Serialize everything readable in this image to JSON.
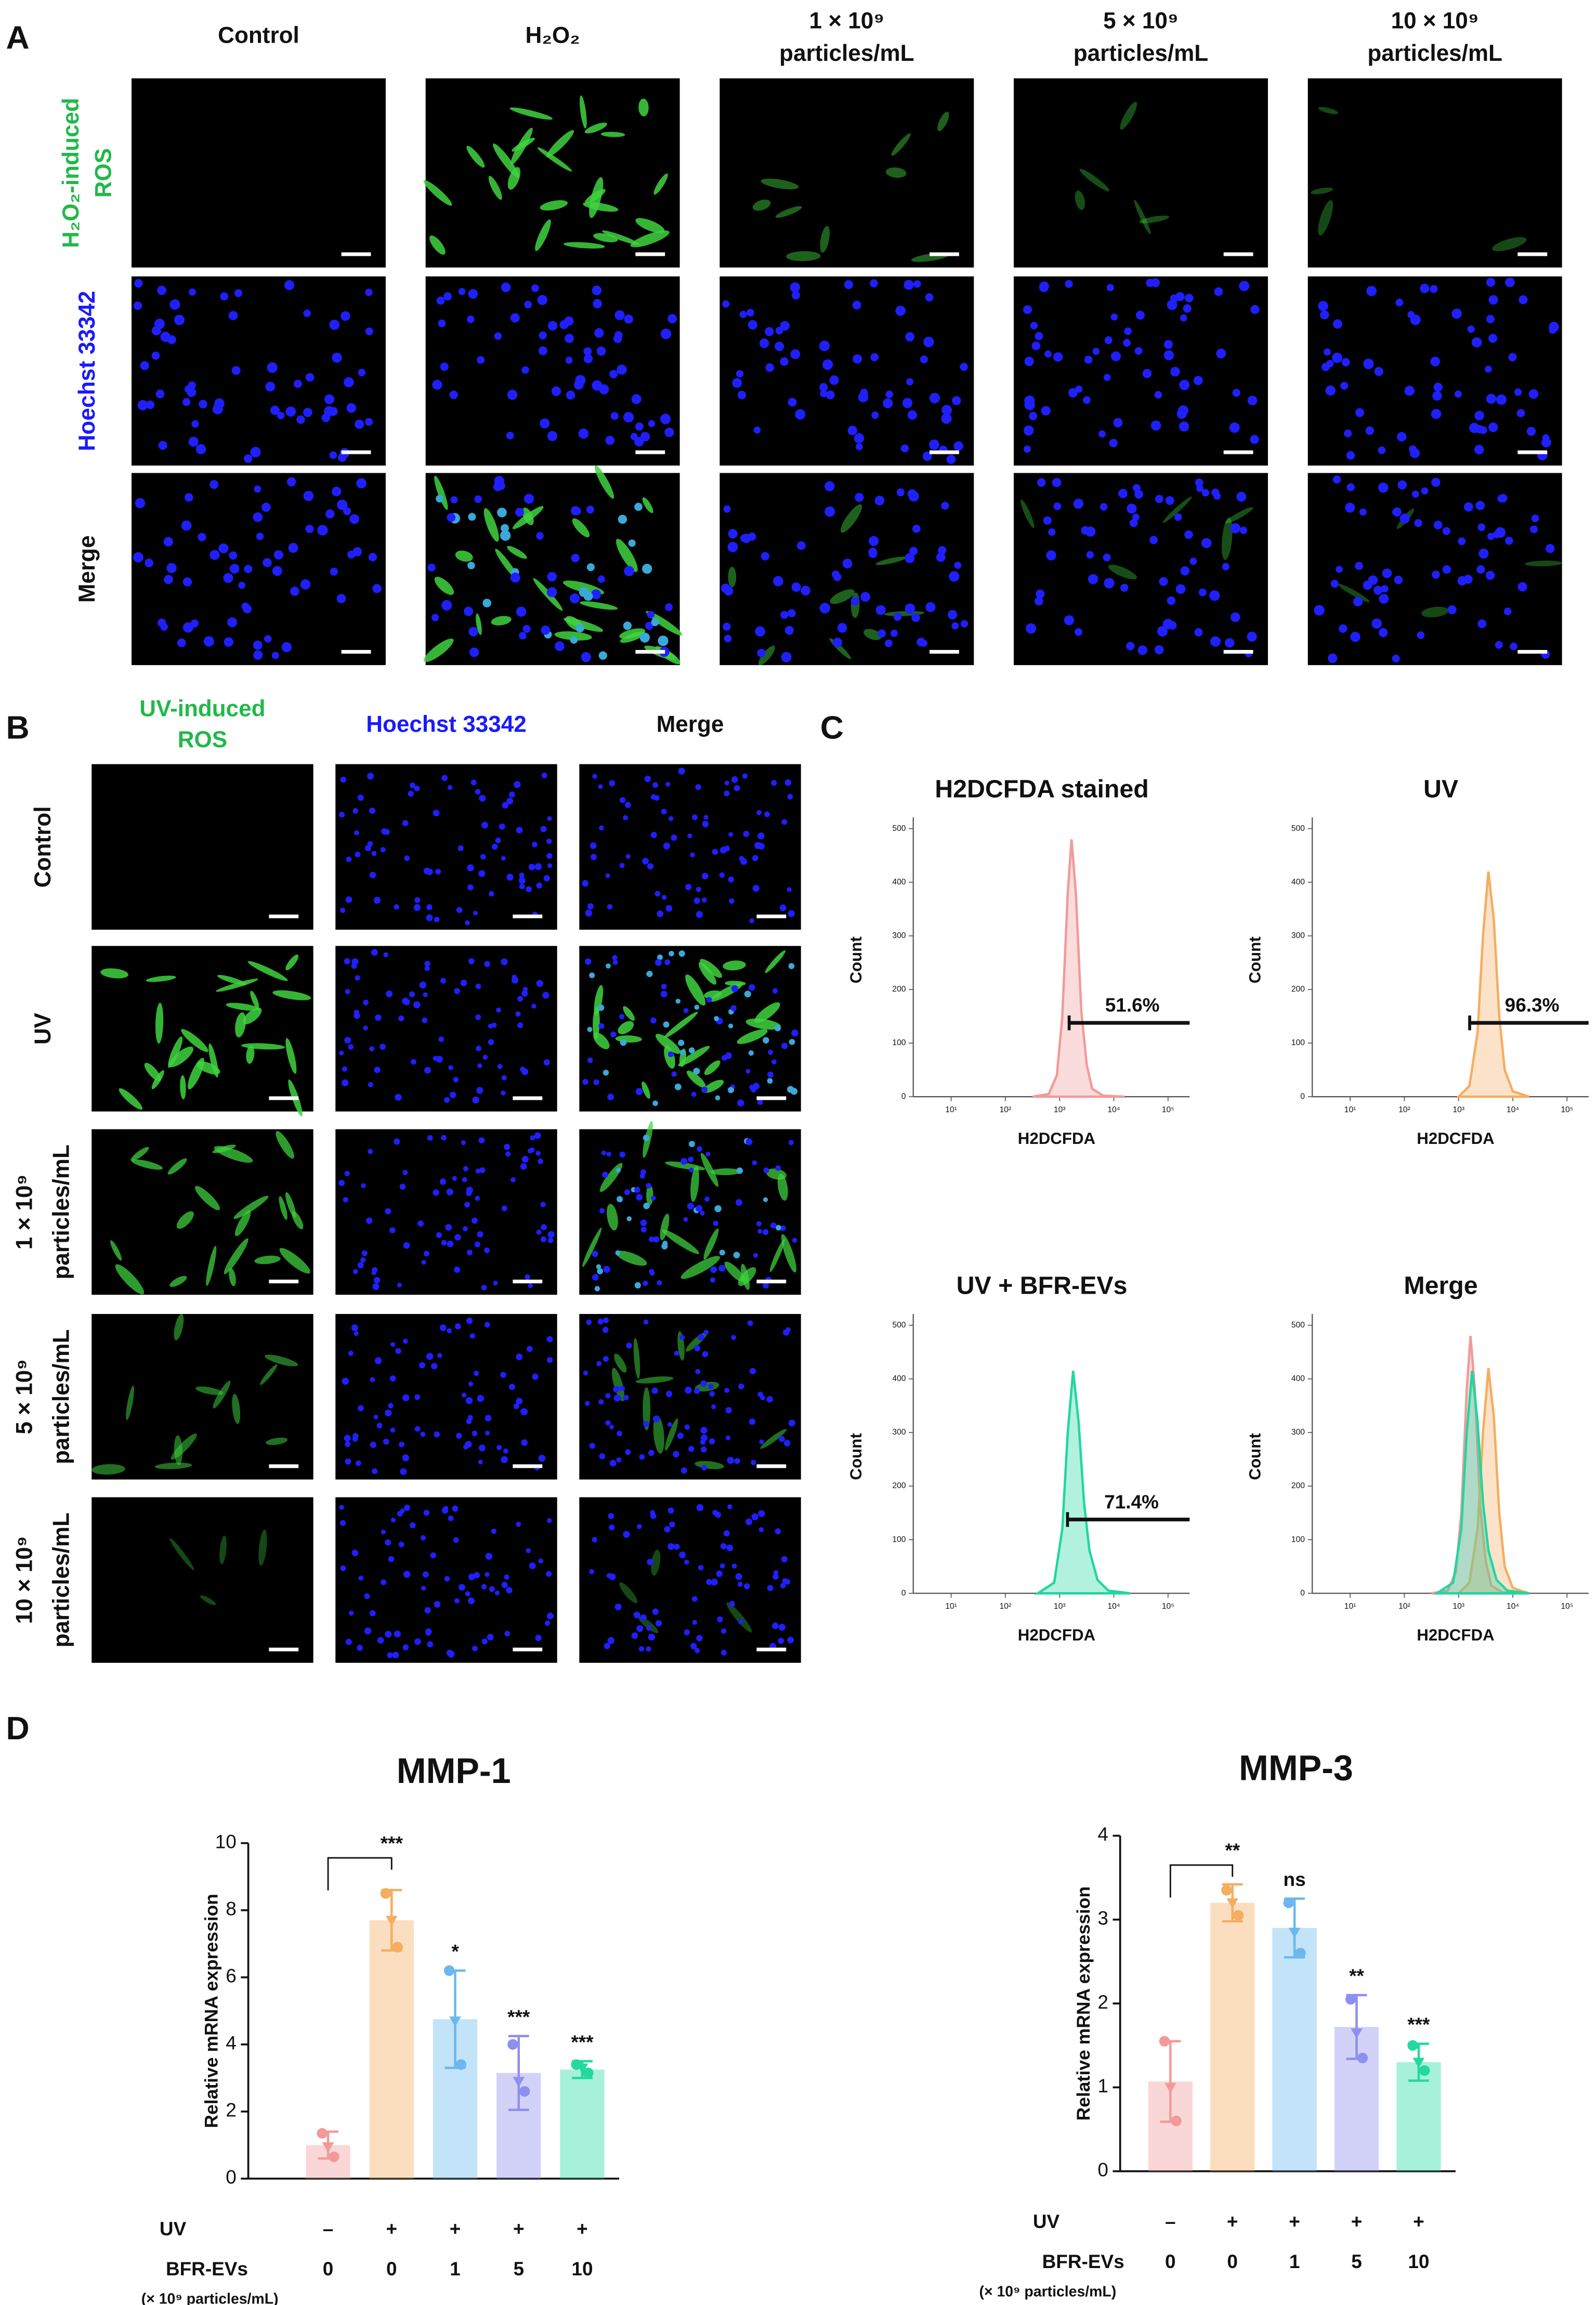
{
  "panel_labels": [
    "A",
    "B",
    "C",
    "D"
  ],
  "panel_a": {
    "columns": [
      [
        "Control"
      ],
      [
        "H₂O₂"
      ],
      [
        "1 × 10⁹",
        "particles/mL"
      ],
      [
        "5 × 10⁹",
        "particles/mL"
      ],
      [
        "10 × 10⁹",
        "particles/mL"
      ]
    ],
    "rows": [
      [
        "H₂O₂-induced",
        "ROS"
      ],
      [
        "Hoechst 33342"
      ],
      [
        "Merge"
      ]
    ]
  },
  "panel_b": {
    "columns": [
      [
        "UV-induced",
        "ROS"
      ],
      [
        "Hoechst 33342"
      ],
      [
        "Merge"
      ]
    ],
    "rows": [
      [
        "Control"
      ],
      [
        "UV"
      ],
      [
        "1 × 10⁹",
        "particles/mL"
      ],
      [
        "5 × 10⁹",
        "particles/mL"
      ],
      [
        "10 × 10⁹",
        "particles/mL"
      ]
    ]
  },
  "chart_data": [
    {
      "type": "area",
      "title": "H2DCFDA stained",
      "xlabel": "H2DCFDA",
      "ylabel": "Count",
      "xscale": "log",
      "xlim": [
        2,
        250000
      ],
      "ylim": [
        0,
        510
      ],
      "xticks": [
        {
          "value": 10,
          "label": "10¹"
        },
        {
          "value": 100,
          "label": "10²"
        },
        {
          "value": 1000,
          "label": "10³"
        },
        {
          "value": 10000,
          "label": "10⁴"
        },
        {
          "value": 100000,
          "label": "10⁵"
        }
      ],
      "yticks": [
        0,
        100,
        200,
        300,
        400,
        500
      ],
      "series": [
        {
          "color": "#f29a9a",
          "x": [
            316,
            631,
            891,
            1122,
            1413,
            1660,
            1995,
            2512,
            3162,
            3981,
            6310,
            15849
          ],
          "values": [
            0,
            5,
            40,
            150,
            380,
            480,
            380,
            160,
            60,
            15,
            2,
            0
          ]
        }
      ],
      "gate": {
        "x": 1500,
        "value": 51.6,
        "value_label": "51.6%"
      }
    },
    {
      "type": "area",
      "title": "UV",
      "xlabel": "H2DCFDA",
      "ylabel": "Count",
      "xscale": "log",
      "xlim": [
        2,
        250000
      ],
      "ylim": [
        0,
        510
      ],
      "xticks": [
        {
          "value": 10,
          "label": "10¹"
        },
        {
          "value": 100,
          "label": "10²"
        },
        {
          "value": 1000,
          "label": "10³"
        },
        {
          "value": 10000,
          "label": "10⁴"
        },
        {
          "value": 100000,
          "label": "10⁵"
        }
      ],
      "yticks": [
        0,
        100,
        200,
        300,
        400,
        500
      ],
      "series": [
        {
          "color": "#f5ad62",
          "x": [
            1000,
            1585,
            2239,
            2818,
            3548,
            4467,
            5623,
            7079,
            10000,
            19953
          ],
          "values": [
            0,
            20,
            120,
            300,
            420,
            330,
            150,
            50,
            10,
            0
          ]
        }
      ],
      "gate": {
        "x": 1600,
        "value": 96.3,
        "value_label": "96.3%"
      }
    },
    {
      "type": "area",
      "title": "UV + BFR-EVs",
      "xlabel": "H2DCFDA",
      "ylabel": "Count",
      "xscale": "log",
      "xlim": [
        2,
        250000
      ],
      "ylim": [
        0,
        510
      ],
      "xticks": [
        {
          "value": 10,
          "label": "10¹"
        },
        {
          "value": 100,
          "label": "10²"
        },
        {
          "value": 1000,
          "label": "10³"
        },
        {
          "value": 10000,
          "label": "10⁴"
        },
        {
          "value": 100000,
          "label": "10⁵"
        }
      ],
      "yticks": [
        0,
        100,
        200,
        300,
        400,
        500
      ],
      "series": [
        {
          "color": "#22d6a0",
          "x": [
            398,
            794,
            1122,
            1413,
            1778,
            2239,
            2818,
            3548,
            5012,
            7943,
            19953
          ],
          "values": [
            0,
            20,
            120,
            300,
            415,
            320,
            170,
            80,
            25,
            5,
            0
          ]
        }
      ],
      "gate": {
        "x": 1400,
        "value": 71.4,
        "value_label": "71.4%"
      }
    },
    {
      "type": "area",
      "title": "Merge",
      "xlabel": "H2DCFDA",
      "ylabel": "Count",
      "xscale": "log",
      "xlim": [
        2,
        250000
      ],
      "ylim": [
        0,
        510
      ],
      "xticks": [
        {
          "value": 10,
          "label": "10¹"
        },
        {
          "value": 100,
          "label": "10²"
        },
        {
          "value": 1000,
          "label": "10³"
        },
        {
          "value": 10000,
          "label": "10⁴"
        },
        {
          "value": 100000,
          "label": "10⁵"
        }
      ],
      "yticks": [
        0,
        100,
        200,
        300,
        400,
        500
      ],
      "series": [
        {
          "color": "#f29a9a",
          "x": [
            316,
            631,
            891,
            1122,
            1413,
            1660,
            1995,
            2512,
            3162,
            3981,
            6310,
            15849
          ],
          "values": [
            0,
            5,
            40,
            150,
            380,
            480,
            380,
            160,
            60,
            15,
            2,
            0
          ]
        },
        {
          "color": "#f5ad62",
          "x": [
            1000,
            1585,
            2239,
            2818,
            3548,
            4467,
            5623,
            7079,
            10000,
            19953
          ],
          "values": [
            0,
            20,
            120,
            300,
            420,
            330,
            150,
            50,
            10,
            0
          ]
        },
        {
          "color": "#22d6a0",
          "x": [
            398,
            794,
            1122,
            1413,
            1778,
            2239,
            2818,
            3548,
            5012,
            7943,
            19953
          ],
          "values": [
            0,
            20,
            120,
            300,
            415,
            320,
            170,
            80,
            25,
            5,
            0
          ]
        }
      ]
    },
    {
      "type": "bar",
      "title": "MMP-1",
      "ylabel": "Relative mRNA expression",
      "ylim": [
        0,
        10
      ],
      "yticks": [
        0,
        2,
        4,
        6,
        8,
        10
      ],
      "row_labels": [
        "UV",
        "BFR-EVs"
      ],
      "unit_label": "(× 10⁹ particles/mL)",
      "uv": [
        "–",
        "+",
        "+",
        "+",
        "+"
      ],
      "categories": [
        "0",
        "0",
        "1",
        "5",
        "10"
      ],
      "values": [
        1.0,
        7.7,
        4.75,
        3.15,
        3.25
      ],
      "errors": [
        0.4,
        0.9,
        1.45,
        1.1,
        0.25
      ],
      "points": [
        [
          1.35,
          0.95,
          0.65
        ],
        [
          8.5,
          7.7,
          6.9
        ],
        [
          6.2,
          4.7,
          3.4
        ],
        [
          4.0,
          2.9,
          2.6
        ],
        [
          3.4,
          3.3,
          3.15
        ]
      ],
      "colors": [
        "#f29a9a",
        "#f5ad62",
        "#6ab8ef",
        "#8f8fef",
        "#22d9a0"
      ],
      "significance": [
        null,
        "***",
        "*",
        "***",
        "***"
      ],
      "bracket_y": 9.56
    },
    {
      "type": "bar",
      "title": "MMP-3",
      "ylabel": "Relative mRNA expression",
      "ylim": [
        0,
        4
      ],
      "yticks": [
        0,
        1,
        2,
        3,
        4
      ],
      "row_labels": [
        "UV",
        "BFR-EVs"
      ],
      "unit_label": "(× 10⁹ particles/mL)",
      "uv": [
        "–",
        "+",
        "+",
        "+",
        "+"
      ],
      "categories": [
        "0",
        "0",
        "1",
        "5",
        "10"
      ],
      "values": [
        1.07,
        3.2,
        2.9,
        1.72,
        1.3
      ],
      "errors": [
        0.48,
        0.22,
        0.35,
        0.38,
        0.22
      ],
      "points": [
        [
          1.55,
          1.0,
          0.6
        ],
        [
          3.35,
          3.2,
          3.05
        ],
        [
          3.2,
          2.85,
          2.6
        ],
        [
          2.05,
          1.65,
          1.35
        ],
        [
          1.5,
          1.3,
          1.2
        ]
      ],
      "colors": [
        "#f29a9a",
        "#f5ad62",
        "#6ab8ef",
        "#8f8fef",
        "#22d9a0"
      ],
      "significance": [
        null,
        "**",
        "ns",
        "**",
        "***"
      ],
      "bracket_y": 3.65
    }
  ]
}
